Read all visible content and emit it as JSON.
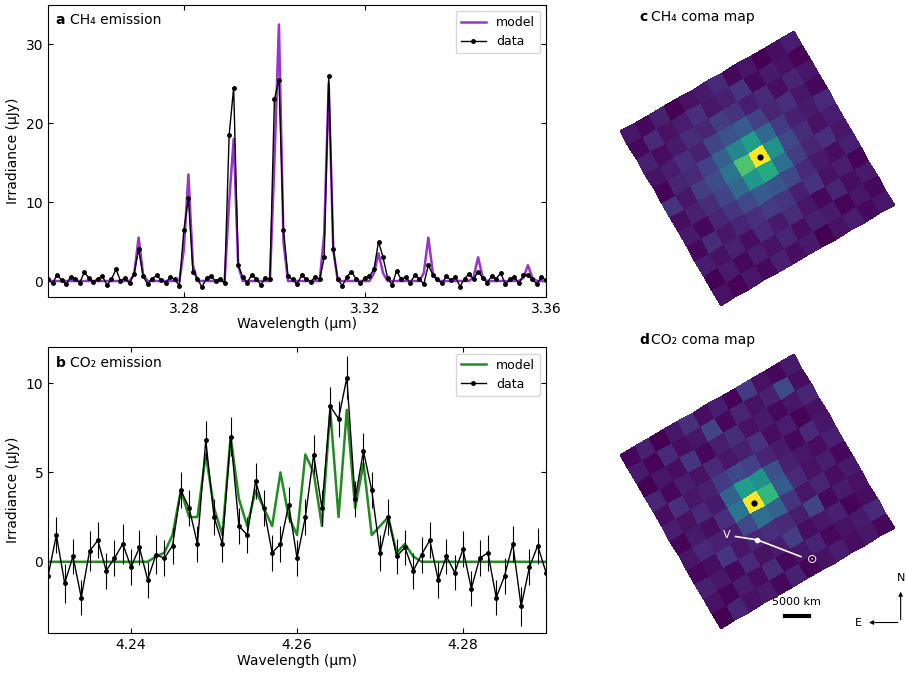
{
  "chart_data": [
    {
      "type": "line",
      "label": "a",
      "title": "CH₄ emission",
      "x_label": "Wavelength (μm)",
      "y_label": "Irradiance (μJy)",
      "x": [
        3.25,
        3.251,
        3.252,
        3.253,
        3.254,
        3.255,
        3.256,
        3.257,
        3.258,
        3.259,
        3.26,
        3.261,
        3.262,
        3.263,
        3.264,
        3.265,
        3.266,
        3.267,
        3.268,
        3.269,
        3.27,
        3.271,
        3.272,
        3.273,
        3.274,
        3.275,
        3.276,
        3.277,
        3.278,
        3.279,
        3.28,
        3.281,
        3.282,
        3.283,
        3.284,
        3.285,
        3.286,
        3.287,
        3.288,
        3.289,
        3.29,
        3.291,
        3.292,
        3.293,
        3.294,
        3.295,
        3.296,
        3.297,
        3.298,
        3.299,
        3.3,
        3.301,
        3.302,
        3.303,
        3.304,
        3.305,
        3.306,
        3.307,
        3.308,
        3.309,
        3.31,
        3.311,
        3.312,
        3.313,
        3.314,
        3.315,
        3.316,
        3.317,
        3.318,
        3.319,
        3.32,
        3.321,
        3.322,
        3.323,
        3.324,
        3.325,
        3.326,
        3.327,
        3.328,
        3.329,
        3.33,
        3.331,
        3.332,
        3.333,
        3.334,
        3.335,
        3.336,
        3.337,
        3.338,
        3.339,
        3.34,
        3.341,
        3.342,
        3.343,
        3.344,
        3.345,
        3.346,
        3.347,
        3.348,
        3.349,
        3.35,
        3.351,
        3.352,
        3.353,
        3.354,
        3.355,
        3.356,
        3.357,
        3.358,
        3.359,
        3.36
      ],
      "series": [
        {
          "name": "model",
          "color": "#9a32cd",
          "type": "line",
          "line_style": "solid",
          "values": [
            0,
            0,
            0,
            0,
            0,
            0,
            0,
            0,
            0,
            0,
            0,
            0,
            0,
            0,
            0,
            0,
            0,
            0,
            0,
            0.8,
            5.5,
            0.8,
            0,
            0,
            0,
            0,
            0,
            0,
            0,
            0,
            4.0,
            13.5,
            2.0,
            0,
            0,
            0,
            0,
            0,
            0,
            0,
            10.0,
            18.0,
            2.0,
            0,
            0,
            0,
            0,
            0,
            0,
            0,
            15.0,
            32.5,
            5.0,
            0,
            0,
            0,
            0,
            0,
            0,
            0,
            0,
            6.0,
            25.0,
            4.0,
            0,
            0,
            0,
            0,
            0,
            0,
            0,
            0,
            1.0,
            3.5,
            1.0,
            0,
            0,
            0,
            0,
            0,
            0,
            0,
            0,
            1.0,
            5.5,
            1.0,
            0,
            0,
            0,
            0,
            0,
            0,
            0,
            0,
            0.5,
            3.0,
            0.5,
            0,
            0,
            0,
            0,
            0,
            0,
            0,
            0,
            0.4,
            2.0,
            0.4,
            0,
            0,
            0
          ]
        },
        {
          "name": "data",
          "color": "#000000",
          "type": "line",
          "marker": "o",
          "line_style": "solid",
          "values": [
            0.2,
            -0.3,
            0.8,
            0.1,
            -0.4,
            0.5,
            0.3,
            -0.2,
            1.1,
            0.4,
            -0.1,
            0.3,
            0.6,
            -0.5,
            0.2,
            1.5,
            0.0,
            0.4,
            -0.3,
            0.9,
            4.0,
            0.6,
            -0.4,
            0.3,
            0.7,
            0.1,
            -0.2,
            0.5,
            0.2,
            -0.6,
            6.5,
            10.5,
            1.2,
            0.3,
            -0.8,
            0.4,
            0.6,
            0.0,
            0.3,
            -0.3,
            18.5,
            24.5,
            2.0,
            0.5,
            -0.2,
            0.8,
            0.3,
            -0.5,
            0.4,
            0.2,
            23.0,
            25.5,
            6.5,
            0.6,
            0.2,
            -0.4,
            0.7,
            0.3,
            -0.1,
            0.5,
            0.2,
            3.0,
            26.0,
            4.0,
            0.2,
            -0.6,
            0.5,
            1.2,
            0.3,
            -0.3,
            0.4,
            0.6,
            1.5,
            5.0,
            3.0,
            0.4,
            -0.5,
            1.3,
            0.2,
            0.5,
            -0.2,
            0.7,
            0.3,
            -0.4,
            2.0,
            0.8,
            0.2,
            -0.3,
            0.6,
            0.1,
            0.5,
            -0.7,
            0.3,
            0.9,
            0.2,
            1.2,
            0.4,
            -0.2,
            0.6,
            0.3,
            1.0,
            -0.4,
            0.2,
            0.5,
            -0.3,
            0.7,
            0.8,
            0.2,
            -0.4,
            0.5,
            0.1
          ]
        }
      ],
      "xlim": [
        3.25,
        3.36
      ],
      "ylim": [
        -2,
        35
      ],
      "xticks": [
        3.28,
        3.32,
        3.36
      ],
      "yticks": [
        0,
        10,
        20,
        30
      ],
      "legend": "upper right"
    },
    {
      "type": "line",
      "label": "b",
      "title": "CO₂ emission",
      "x_label": "Wavelength (μm)",
      "y_label": "Irradiance (μJy)",
      "x": [
        4.23,
        4.231,
        4.232,
        4.233,
        4.234,
        4.235,
        4.236,
        4.237,
        4.238,
        4.239,
        4.24,
        4.241,
        4.242,
        4.243,
        4.244,
        4.245,
        4.246,
        4.247,
        4.248,
        4.249,
        4.25,
        4.251,
        4.252,
        4.253,
        4.254,
        4.255,
        4.256,
        4.257,
        4.258,
        4.259,
        4.26,
        4.261,
        4.262,
        4.263,
        4.264,
        4.265,
        4.266,
        4.267,
        4.268,
        4.269,
        4.27,
        4.271,
        4.272,
        4.273,
        4.274,
        4.275,
        4.276,
        4.277,
        4.278,
        4.279,
        4.28,
        4.281,
        4.282,
        4.283,
        4.284,
        4.285,
        4.286,
        4.287,
        4.288,
        4.289,
        4.29
      ],
      "series": [
        {
          "name": "model",
          "color": "#228b22",
          "type": "line",
          "line_style": "solid",
          "values": [
            0,
            0,
            0,
            0,
            0,
            0,
            0,
            0,
            0,
            0,
            0,
            0,
            0,
            0.3,
            0.5,
            1.5,
            4.0,
            2.5,
            2.5,
            6.0,
            3.0,
            1.5,
            7.0,
            3.5,
            2.0,
            4.0,
            3.0,
            2.0,
            5.0,
            2.5,
            1.5,
            6.0,
            5.0,
            2.0,
            8.5,
            2.5,
            8.5,
            3.0,
            5.5,
            1.5,
            2.0,
            2.5,
            0.5,
            1.0,
            0.3,
            0,
            0,
            0,
            0,
            0,
            0,
            0,
            0,
            0,
            0,
            0,
            0,
            0,
            0,
            0,
            0
          ]
        },
        {
          "name": "data",
          "color": "#000000",
          "type": "line",
          "marker": "o",
          "line_style": "solid",
          "values": [
            -0.8,
            1.5,
            -1.2,
            0.3,
            -2.0,
            0.6,
            1.2,
            -0.5,
            0.2,
            1.0,
            -0.3,
            0.8,
            -1.0,
            0.4,
            0.2,
            0.9,
            4.0,
            3.0,
            1.0,
            6.8,
            2.5,
            1.0,
            7.0,
            2.0,
            1.5,
            4.5,
            3.0,
            0.5,
            1.0,
            3.2,
            0.2,
            2.5,
            6.0,
            3.0,
            8.7,
            8.0,
            10.3,
            3.5,
            6.2,
            4.0,
            0.5,
            2.5,
            0.3,
            0.8,
            -0.5,
            0.4,
            1.2,
            -1.0,
            0.3,
            -0.6,
            0.7,
            -1.5,
            0.2,
            0.5,
            -2.0,
            -0.8,
            1.0,
            -2.5,
            -0.3,
            0.9,
            -0.6
          ],
          "errors": [
            1.0,
            1.0,
            1.1,
            1.0,
            1.0,
            1.1,
            1.0,
            1.0,
            1.0,
            1.1,
            1.0,
            1.0,
            1.0,
            1.1,
            1.0,
            1.0,
            1.0,
            1.0,
            1.0,
            1.1,
            1.0,
            1.0,
            1.1,
            1.0,
            1.0,
            1.0,
            1.0,
            1.0,
            1.0,
            1.0,
            1.0,
            1.0,
            1.1,
            1.0,
            1.1,
            1.0,
            1.2,
            1.0,
            1.0,
            1.0,
            1.0,
            1.0,
            1.0,
            1.0,
            1.0,
            1.0,
            1.0,
            1.0,
            1.0,
            1.0,
            1.0,
            1.0,
            1.0,
            1.0,
            1.0,
            1.0,
            1.0,
            1.1,
            1.0,
            1.0,
            1.0
          ]
        }
      ],
      "xlim": [
        4.23,
        4.29
      ],
      "ylim": [
        -4,
        12
      ],
      "xticks": [
        4.24,
        4.26,
        4.28
      ],
      "yticks": [
        0,
        5,
        10
      ],
      "legend": "upper right"
    },
    {
      "type": "heatmap",
      "label": "c",
      "title": "CH₄ coma map",
      "tick_labels": false,
      "clim": [
        0.1,
        1.0
      ],
      "cells": [
        [
          0.15,
          0.12,
          0.18,
          0.1,
          0.14,
          0.16,
          0.2,
          0.12,
          0.15,
          0.1,
          0.13,
          0.17
        ],
        [
          0.12,
          0.2,
          0.14,
          0.17,
          0.22,
          0.15,
          0.18,
          0.24,
          0.12,
          0.16,
          0.14,
          0.11
        ],
        [
          0.18,
          0.13,
          0.16,
          0.21,
          0.19,
          0.26,
          0.23,
          0.17,
          0.2,
          0.13,
          0.19,
          0.15
        ],
        [
          0.14,
          0.17,
          0.22,
          0.18,
          0.28,
          0.33,
          0.36,
          0.27,
          0.19,
          0.22,
          0.15,
          0.12
        ],
        [
          0.11,
          0.19,
          0.2,
          0.27,
          0.38,
          0.52,
          0.6,
          0.4,
          0.25,
          0.18,
          0.16,
          0.2
        ],
        [
          0.23,
          0.15,
          0.26,
          0.31,
          0.45,
          0.75,
          1.0,
          0.55,
          0.3,
          0.21,
          0.14,
          0.17
        ],
        [
          0.13,
          0.18,
          0.21,
          0.28,
          0.4,
          0.58,
          0.65,
          0.42,
          0.26,
          0.19,
          0.22,
          0.15
        ],
        [
          0.16,
          0.12,
          0.19,
          0.24,
          0.3,
          0.36,
          0.34,
          0.29,
          0.2,
          0.16,
          0.13,
          0.18
        ],
        [
          0.12,
          0.21,
          0.15,
          0.19,
          0.22,
          0.25,
          0.24,
          0.18,
          0.23,
          0.14,
          0.17,
          0.11
        ],
        [
          0.17,
          0.14,
          0.18,
          0.13,
          0.2,
          0.16,
          0.21,
          0.15,
          0.12,
          0.19,
          0.13,
          0.16
        ],
        [
          0.1,
          0.16,
          0.12,
          0.17,
          0.14,
          0.19,
          0.13,
          0.18,
          0.16,
          0.11,
          0.15,
          0.12
        ],
        [
          0.14,
          0.11,
          0.15,
          0.12,
          0.18,
          0.13,
          0.16,
          0.1,
          0.14,
          0.17,
          0.12,
          0.15
        ]
      ]
    },
    {
      "type": "heatmap",
      "label": "d",
      "title": "CO₂ coma map",
      "tick_labels": false,
      "clim": [
        0.1,
        1.0
      ],
      "cells": [
        [
          0.12,
          0.18,
          0.1,
          0.15,
          0.22,
          0.13,
          0.17,
          0.11,
          0.25,
          0.14,
          0.12,
          0.16
        ],
        [
          0.16,
          0.11,
          0.2,
          0.13,
          0.15,
          0.28,
          0.12,
          0.19,
          0.14,
          0.18,
          0.3,
          0.13
        ],
        [
          0.1,
          0.15,
          0.13,
          0.24,
          0.12,
          0.17,
          0.21,
          0.14,
          0.16,
          0.12,
          0.15,
          0.19
        ],
        [
          0.19,
          0.12,
          0.17,
          0.14,
          0.2,
          0.15,
          0.18,
          0.23,
          0.13,
          0.17,
          0.11,
          0.14
        ],
        [
          0.13,
          0.22,
          0.15,
          0.18,
          0.25,
          0.3,
          0.27,
          0.19,
          0.16,
          0.12,
          0.2,
          0.15
        ],
        [
          0.17,
          0.14,
          0.2,
          0.16,
          0.38,
          0.6,
          0.55,
          0.32,
          0.18,
          0.15,
          0.13,
          0.18
        ],
        [
          0.11,
          0.16,
          0.13,
          0.22,
          0.45,
          1.0,
          0.7,
          0.36,
          0.2,
          0.14,
          0.17,
          0.12
        ],
        [
          0.15,
          0.2,
          0.18,
          0.17,
          0.3,
          0.42,
          0.38,
          0.24,
          0.15,
          0.19,
          0.13,
          0.16
        ],
        [
          0.12,
          0.13,
          0.24,
          0.15,
          0.19,
          0.22,
          0.2,
          0.17,
          0.28,
          0.12,
          0.16,
          0.14
        ],
        [
          0.18,
          0.15,
          0.12,
          0.2,
          0.14,
          0.17,
          0.26,
          0.13,
          0.15,
          0.18,
          0.11,
          0.13
        ],
        [
          0.14,
          0.11,
          0.17,
          0.13,
          0.21,
          0.12,
          0.15,
          0.19,
          0.12,
          0.14,
          0.16,
          0.2
        ],
        [
          0.1,
          0.19,
          0.14,
          0.16,
          0.12,
          0.18,
          0.11,
          0.14,
          0.17,
          0.13,
          0.15,
          0.12
        ]
      ],
      "velocity_label": "V",
      "sun_label": "⊙",
      "scale_label": "5000 km",
      "north_label": "N",
      "east_label": "E"
    }
  ]
}
